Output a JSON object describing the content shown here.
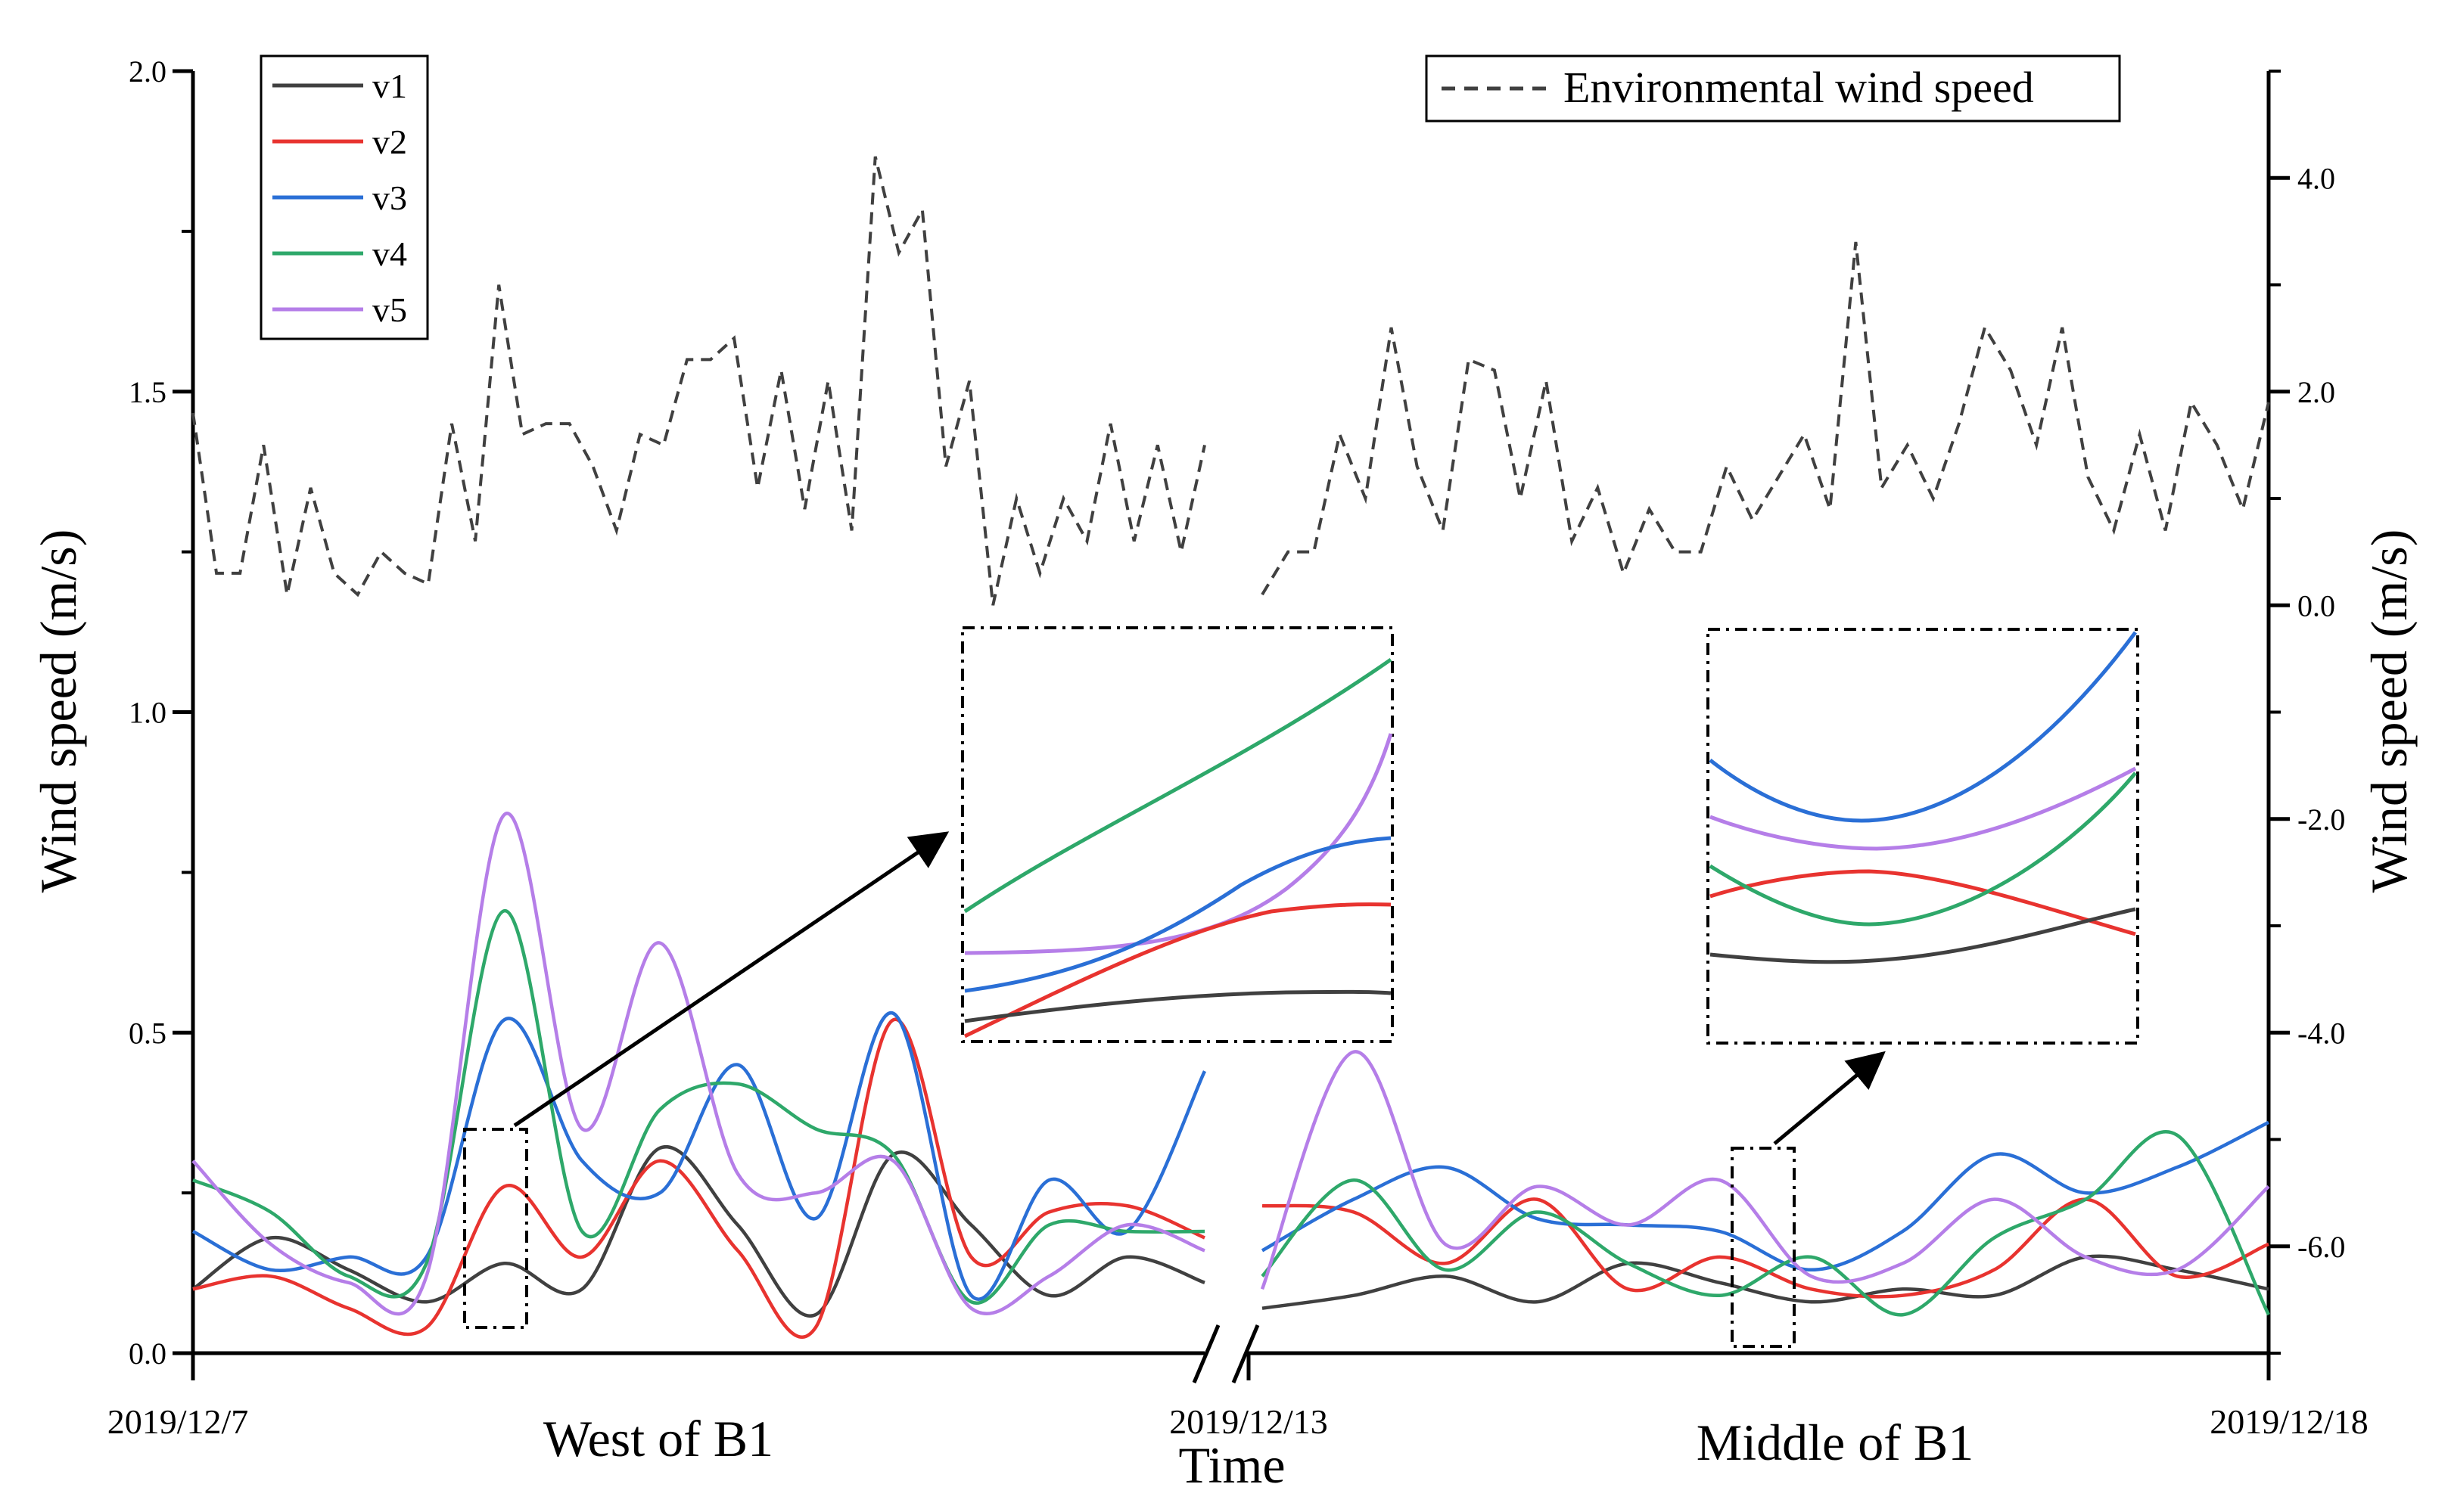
{
  "chart_data": {
    "type": "line",
    "title": "",
    "xlabel": "Time",
    "ylabel": "Wind speed (m/s)",
    "ylabel_right": "Wind speed (m/s)",
    "ylim": [
      0,
      2
    ],
    "ylim_right": [
      -7,
      5
    ],
    "yticks": [
      "0.0",
      "0.5",
      "1.0",
      "1.5",
      "2.0"
    ],
    "yticks_right": [
      "-6.0",
      "-4.0",
      "-2.0",
      "0.0",
      "2.0",
      "4.0"
    ],
    "x_labels": [
      "2019/12/7",
      "2019/12/13",
      "2019/12/18"
    ],
    "section_labels": [
      "West of B1",
      "Middle of B1"
    ],
    "legend": {
      "placement": "top-left",
      "entries": [
        {
          "name": "v1",
          "color": "#404040"
        },
        {
          "name": "v2",
          "color": "#e8332f"
        },
        {
          "name": "v3",
          "color": "#2a6fd6"
        },
        {
          "name": "v4",
          "color": "#2ea86a"
        },
        {
          "name": "v5",
          "color": "#b57ee8"
        }
      ]
    },
    "env_legend": {
      "placement": "top-right",
      "label": "Environmental wind speed",
      "color": "#404040"
    },
    "env_series": {
      "name": "Environmental wind speed",
      "segment1": [
        1.8,
        0.3,
        0.3,
        1.5,
        0.1,
        1.1,
        0.3,
        0.1,
        0.5,
        0.3,
        0.2,
        1.7,
        0.6,
        3.0,
        1.6,
        1.7,
        1.7,
        1.3,
        0.7,
        1.6,
        1.5,
        2.3,
        2.3,
        2.5,
        1.1,
        2.2,
        0.9,
        2.1,
        0.7,
        4.2,
        3.3,
        3.7,
        1.3,
        2.1,
        0.0,
        1.0,
        0.3,
        1.0,
        0.6,
        1.7,
        0.6,
        1.5,
        0.5,
        1.5
      ],
      "segment2": [
        0.1,
        0.5,
        0.5,
        1.6,
        1.0,
        2.6,
        1.3,
        0.7,
        2.3,
        2.2,
        1.0,
        2.1,
        0.6,
        1.1,
        0.3,
        0.9,
        0.5,
        0.5,
        1.3,
        0.8,
        1.2,
        1.6,
        0.9,
        3.4,
        1.1,
        1.5,
        1.0,
        1.7,
        2.6,
        2.2,
        1.5,
        2.6,
        1.2,
        0.7,
        1.6,
        0.7,
        1.9,
        1.5,
        0.9,
        1.9
      ]
    },
    "series": [
      {
        "name": "v1",
        "segment1": [
          0.1,
          0.18,
          0.13,
          0.08,
          0.14,
          0.1,
          0.32,
          0.2,
          0.06,
          0.31,
          0.2,
          0.09,
          0.15,
          0.11
        ],
        "segment2": [
          0.07,
          0.09,
          0.12,
          0.08,
          0.14,
          0.11,
          0.08,
          0.1,
          0.09,
          0.15,
          0.13,
          0.1
        ]
      },
      {
        "name": "v2",
        "segment1": [
          0.1,
          0.12,
          0.07,
          0.04,
          0.26,
          0.15,
          0.3,
          0.16,
          0.04,
          0.52,
          0.15,
          0.22,
          0.23,
          0.18
        ],
        "segment2": [
          0.23,
          0.22,
          0.14,
          0.24,
          0.1,
          0.15,
          0.1,
          0.09,
          0.13,
          0.24,
          0.12,
          0.17
        ]
      },
      {
        "name": "v3",
        "segment1": [
          0.19,
          0.13,
          0.15,
          0.15,
          0.52,
          0.3,
          0.25,
          0.45,
          0.21,
          0.53,
          0.09,
          0.27,
          0.19,
          0.44
        ],
        "segment2": [
          0.16,
          0.24,
          0.29,
          0.21,
          0.2,
          0.19,
          0.13,
          0.19,
          0.31,
          0.25,
          0.29,
          0.36
        ]
      },
      {
        "name": "v4",
        "segment1": [
          0.27,
          0.22,
          0.12,
          0.14,
          0.69,
          0.19,
          0.38,
          0.42,
          0.35,
          0.31,
          0.08,
          0.2,
          0.19,
          0.19
        ],
        "segment2": [
          0.12,
          0.27,
          0.13,
          0.22,
          0.14,
          0.09,
          0.15,
          0.06,
          0.18,
          0.24,
          0.34,
          0.06
        ]
      },
      {
        "name": "v5",
        "segment1": [
          0.3,
          0.17,
          0.11,
          0.12,
          0.84,
          0.35,
          0.64,
          0.28,
          0.25,
          0.3,
          0.07,
          0.12,
          0.2,
          0.16
        ],
        "segment2": [
          0.1,
          0.47,
          0.17,
          0.26,
          0.2,
          0.27,
          0.12,
          0.14,
          0.24,
          0.15,
          0.13,
          0.26
        ]
      }
    ]
  }
}
